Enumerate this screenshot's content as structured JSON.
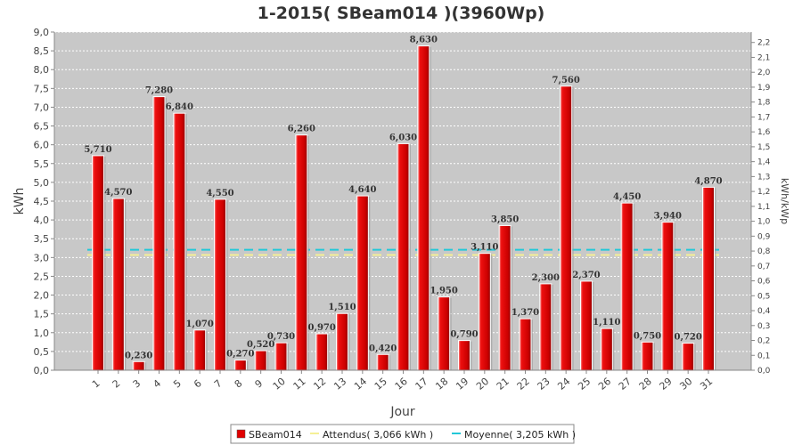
{
  "chart_data": {
    "type": "bar",
    "title": "1-2015( SBeam014 )(3960Wp)",
    "xlabel": "Jour",
    "ylabel": "kWh",
    "ylabel_right": "kWh/kWp",
    "ylim": [
      0,
      9.0
    ],
    "ylim_right": [
      0,
      2.27
    ],
    "y_ticks": [
      "0,0",
      "0,5",
      "1,0",
      "1,5",
      "2,0",
      "2,5",
      "3,0",
      "3,5",
      "4,0",
      "4,5",
      "5,0",
      "5,5",
      "6,0",
      "6,5",
      "7,0",
      "7,5",
      "8,0",
      "8,5",
      "9,0"
    ],
    "y_ticks_right": [
      "0,0",
      "0,1",
      "0,2",
      "0,3",
      "0,4",
      "0,5",
      "0,6",
      "0,7",
      "0,8",
      "0,9",
      "1,0",
      "1,1",
      "1,2",
      "1,3",
      "1,4",
      "1,5",
      "1,6",
      "1,7",
      "1,8",
      "1,9",
      "2,0",
      "2,1",
      "2,2"
    ],
    "categories": [
      "1",
      "2",
      "3",
      "4",
      "5",
      "6",
      "7",
      "8",
      "9",
      "10",
      "11",
      "12",
      "13",
      "14",
      "15",
      "16",
      "17",
      "18",
      "19",
      "20",
      "21",
      "22",
      "23",
      "24",
      "25",
      "26",
      "27",
      "28",
      "29",
      "30",
      "31"
    ],
    "series": [
      {
        "name": "SBeam014",
        "values": [
          5.71,
          4.57,
          0.23,
          7.28,
          6.84,
          1.07,
          4.55,
          0.27,
          0.52,
          0.73,
          6.26,
          0.97,
          1.51,
          4.64,
          0.42,
          6.03,
          8.63,
          1.95,
          0.79,
          3.11,
          3.85,
          1.37,
          2.3,
          7.56,
          2.37,
          1.11,
          4.45,
          0.75,
          3.94,
          0.72,
          4.87
        ],
        "labels": [
          "5,710",
          "4,570",
          "0,230",
          "7,280",
          "6,840",
          "1,070",
          "4,550",
          "0,270",
          "0,520",
          "0,730",
          "6,260",
          "0,970",
          "1,510",
          "4,640",
          "0,420",
          "6,030",
          "8,630",
          "1,950",
          "0,790",
          "3,110",
          "3,850",
          "1,370",
          "2,300",
          "7,560",
          "2,370",
          "1,110",
          "4,450",
          "0,750",
          "3,940",
          "0,720",
          "4,870"
        ],
        "color": "#e00000"
      }
    ],
    "lines": [
      {
        "name": "Attendus( 3,066 kWh )",
        "value": 3.066,
        "color": "#f5f096"
      },
      {
        "name": "Moyenne( 3,205 kWh )",
        "value": 3.205,
        "color": "#22c8d8"
      }
    ],
    "grid": true,
    "plot_background": "#c8c8c8",
    "legend_position": "bottom"
  }
}
